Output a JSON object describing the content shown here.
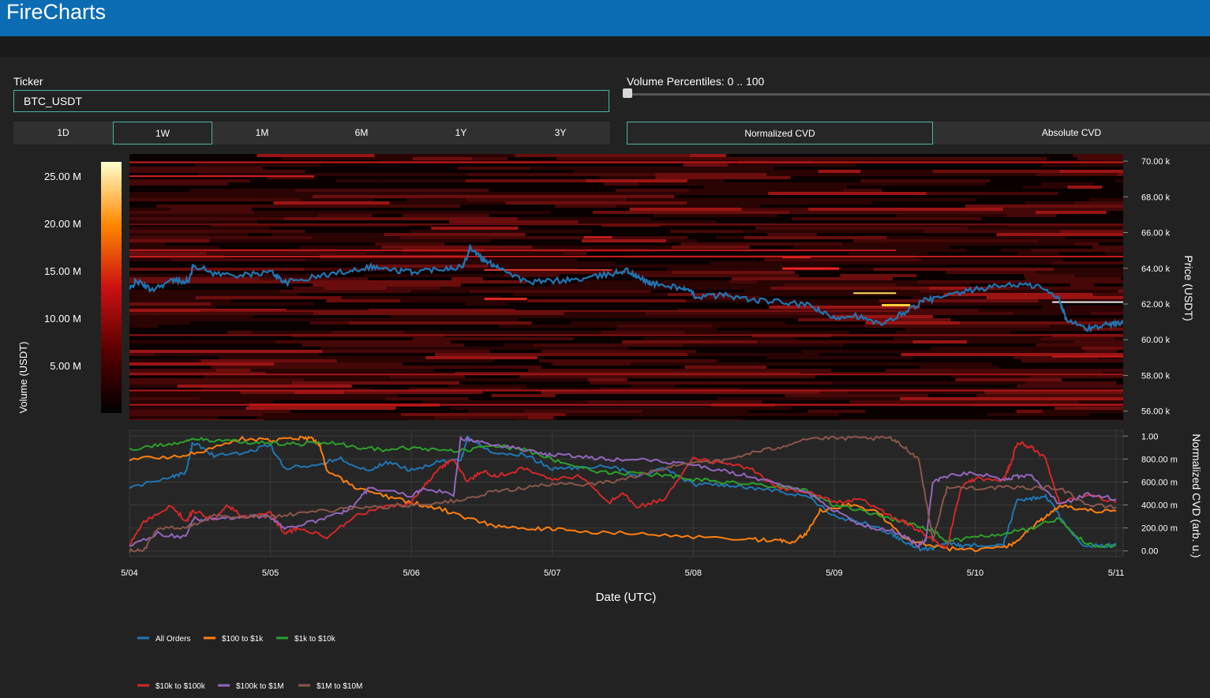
{
  "app": {
    "title": "FireCharts"
  },
  "ticker": {
    "label": "Ticker",
    "value": "BTC_USDT"
  },
  "ranges": [
    {
      "label": "1D",
      "active": false
    },
    {
      "label": "1W",
      "active": true
    },
    {
      "label": "1M",
      "active": false
    },
    {
      "label": "6M",
      "active": false
    },
    {
      "label": "1Y",
      "active": false
    },
    {
      "label": "3Y",
      "active": false
    }
  ],
  "volume_percentiles": {
    "label": "Volume Percentiles: 0 .. 100",
    "min": 0,
    "max": 100,
    "value": 0
  },
  "cvd_modes": [
    {
      "label": "Normalized CVD",
      "active": true
    },
    {
      "label": "Absolute CVD",
      "active": false
    }
  ],
  "colors": {
    "accent": "#0c6cb3",
    "active_border": "#4db3a7",
    "price_line": "#1f77b4",
    "heatmap_low": "#000000",
    "heatmap_mid": "#cc1111",
    "heatmap_high": "#ffffcc"
  },
  "chart_data": [
    {
      "type": "heatmap",
      "colorbar_label": "Volume (USDT)",
      "colorbar_ticks": [
        "25.00 M",
        "20.00 M",
        "15.00 M",
        "10.00 M",
        "5.00 M"
      ],
      "colorbar_range": [
        0,
        26500000
      ],
      "yaxis_label": "Price (USDT)",
      "yaxis_ticks": [
        "70.00 k",
        "68.00 k",
        "66.00 k",
        "64.00 k",
        "62.00 k",
        "60.00 k",
        "58.00 k",
        "56.00 k"
      ],
      "ylim": [
        55500,
        70400
      ],
      "xlim": [
        0,
        7.0
      ],
      "price_series": {
        "name": "Price",
        "x": [
          0,
          0.05,
          0.15,
          0.3,
          0.42,
          0.45,
          0.6,
          0.8,
          1.0,
          1.1,
          1.3,
          1.5,
          1.7,
          1.85,
          2.0,
          2.2,
          2.35,
          2.4,
          2.5,
          2.6,
          2.8,
          3.0,
          3.2,
          3.4,
          3.5,
          3.6,
          3.7,
          3.9,
          4.0,
          4.2,
          4.4,
          4.6,
          4.8,
          4.95,
          5.1,
          5.3,
          5.45,
          5.6,
          5.75,
          5.95,
          6.2,
          6.4,
          6.55,
          6.6,
          6.75,
          6.9,
          7.0
        ],
        "y": [
          62800,
          63300,
          62800,
          63300,
          63300,
          64200,
          63700,
          63600,
          63800,
          63200,
          63500,
          63800,
          64100,
          63900,
          63800,
          64000,
          64100,
          65200,
          64400,
          64100,
          63200,
          63300,
          63400,
          63700,
          63900,
          63400,
          63100,
          62900,
          62400,
          62500,
          62200,
          62100,
          61900,
          61200,
          61400,
          60800,
          61500,
          62200,
          62400,
          62800,
          63100,
          63000,
          62300,
          61100,
          60600,
          60900,
          60900
        ]
      }
    },
    {
      "type": "line",
      "xlabel": "Date (UTC)",
      "ylabel": "Normalized CVD (arb. u.)",
      "x_ticks": [
        "5/04",
        "5/05",
        "5/06",
        "5/07",
        "5/08",
        "5/09",
        "5/10",
        "5/11"
      ],
      "y_ticks": [
        "1.00",
        "800.00 m",
        "600.00 m",
        "400.00 m",
        "200.00 m",
        "0.00"
      ],
      "ylim": [
        -0.05,
        1.05
      ],
      "xlim": [
        0,
        7.05
      ],
      "legend_position": "bottom",
      "series": [
        {
          "name": "All Orders",
          "color": "#1f77b4",
          "x": [
            0,
            0.3,
            0.4,
            0.45,
            0.6,
            0.8,
            1.0,
            1.1,
            1.3,
            1.5,
            1.7,
            1.85,
            2.0,
            2.2,
            2.35,
            2.4,
            2.6,
            2.8,
            3.0,
            3.2,
            3.4,
            3.6,
            3.8,
            4.0,
            4.2,
            4.4,
            4.6,
            4.8,
            5.0,
            5.2,
            5.4,
            5.5,
            5.6,
            5.7,
            5.8,
            5.9,
            6.0,
            6.2,
            6.3,
            6.4,
            6.5,
            6.6,
            6.75,
            6.9,
            7.0
          ],
          "y": [
            0.55,
            0.65,
            0.68,
            0.95,
            0.83,
            0.85,
            0.92,
            0.72,
            0.75,
            0.8,
            0.7,
            0.78,
            0.7,
            0.78,
            0.79,
            0.98,
            0.85,
            0.84,
            0.72,
            0.72,
            0.74,
            0.66,
            0.72,
            0.58,
            0.58,
            0.55,
            0.52,
            0.48,
            0.3,
            0.25,
            0.15,
            0.08,
            0.02,
            0.02,
            0.08,
            0.04,
            0.05,
            0.06,
            0.45,
            0.45,
            0.48,
            0.3,
            0.05,
            0.04,
            0.06
          ]
        },
        {
          "name": "$100 to $1k",
          "color": "#ff7f0e",
          "x": [
            0,
            0.3,
            0.5,
            0.8,
            1.0,
            1.2,
            1.3,
            1.35,
            1.4,
            1.6,
            1.8,
            2.0,
            2.2,
            2.4,
            2.6,
            2.8,
            3.0,
            3.2,
            3.6,
            4.0,
            4.4,
            4.6,
            4.7,
            4.8,
            4.9,
            5.1,
            5.3,
            5.5,
            5.8,
            6.0,
            6.2,
            6.3,
            6.4,
            6.5,
            6.6,
            6.8,
            7.0
          ],
          "y": [
            0.8,
            0.82,
            0.86,
            0.98,
            0.96,
            0.98,
            0.98,
            0.92,
            0.7,
            0.55,
            0.48,
            0.42,
            0.37,
            0.28,
            0.22,
            0.2,
            0.19,
            0.17,
            0.15,
            0.12,
            0.1,
            0.09,
            0.08,
            0.15,
            0.35,
            0.4,
            0.35,
            0.1,
            0.02,
            0.01,
            0.03,
            0.08,
            0.2,
            0.3,
            0.4,
            0.35,
            0.35
          ]
        },
        {
          "name": "$1k to $10k",
          "color": "#2ca02c",
          "x": [
            0,
            0.2,
            0.4,
            0.45,
            0.6,
            0.8,
            1.0,
            1.2,
            1.4,
            1.6,
            1.8,
            2.0,
            2.2,
            2.4,
            2.6,
            2.8,
            3.0,
            3.2,
            3.4,
            3.6,
            3.8,
            4.0,
            4.2,
            4.4,
            4.6,
            4.8,
            5.0,
            5.2,
            5.4,
            5.5,
            5.6,
            5.7,
            5.8,
            6.0,
            6.2,
            6.4,
            6.6,
            6.75,
            6.85,
            7.0
          ],
          "y": [
            0.88,
            0.92,
            0.95,
            0.98,
            0.96,
            0.95,
            0.94,
            0.93,
            0.95,
            0.91,
            0.88,
            0.9,
            0.87,
            0.88,
            0.92,
            0.88,
            0.8,
            0.72,
            0.68,
            0.67,
            0.66,
            0.62,
            0.6,
            0.58,
            0.56,
            0.52,
            0.4,
            0.35,
            0.28,
            0.25,
            0.22,
            0.18,
            0.08,
            0.12,
            0.15,
            0.2,
            0.28,
            0.1,
            0.03,
            0.05
          ]
        },
        {
          "name": "$10k to $100k",
          "color": "#d62728",
          "x": [
            0,
            0.1,
            0.3,
            0.4,
            0.45,
            0.6,
            0.7,
            0.8,
            1.0,
            1.1,
            1.2,
            1.4,
            1.6,
            1.8,
            2.0,
            2.1,
            2.2,
            2.3,
            2.4,
            2.5,
            2.6,
            2.8,
            3.0,
            3.2,
            3.4,
            3.5,
            3.6,
            3.8,
            4.0,
            4.2,
            4.4,
            4.6,
            4.8,
            5.0,
            5.2,
            5.4,
            5.5,
            5.6,
            5.7,
            5.8,
            5.9,
            6.0,
            6.2,
            6.25,
            6.3,
            6.4,
            6.5,
            6.6,
            6.8,
            7.0
          ],
          "y": [
            0.05,
            0.25,
            0.4,
            0.25,
            0.35,
            0.28,
            0.4,
            0.3,
            0.33,
            0.15,
            0.2,
            0.12,
            0.3,
            0.38,
            0.42,
            0.58,
            0.72,
            0.8,
            0.6,
            0.7,
            0.65,
            0.72,
            0.62,
            0.65,
            0.42,
            0.5,
            0.38,
            0.46,
            0.8,
            0.77,
            0.72,
            0.55,
            0.52,
            0.42,
            0.45,
            0.3,
            0.25,
            0.18,
            0.1,
            0.02,
            0.55,
            0.63,
            0.62,
            0.75,
            0.95,
            0.9,
            0.8,
            0.42,
            0.5,
            0.42
          ]
        },
        {
          "name": "$100k to $1M",
          "color": "#9467bd",
          "x": [
            0,
            0.2,
            0.4,
            0.45,
            0.6,
            0.8,
            1.0,
            1.1,
            1.3,
            1.5,
            1.6,
            1.7,
            2.0,
            2.1,
            2.3,
            2.35,
            2.5,
            2.7,
            2.9,
            3.0,
            3.2,
            3.4,
            3.6,
            3.8,
            4.0,
            4.2,
            4.4,
            4.6,
            4.8,
            5.0,
            5.2,
            5.4,
            5.5,
            5.6,
            5.65,
            5.7,
            5.8,
            6.0,
            6.2,
            6.3,
            6.4,
            6.6,
            6.8,
            7.0
          ],
          "y": [
            0.05,
            0.15,
            0.12,
            0.28,
            0.28,
            0.3,
            0.3,
            0.2,
            0.25,
            0.33,
            0.4,
            0.55,
            0.48,
            0.55,
            0.48,
            0.98,
            0.95,
            0.9,
            0.85,
            0.84,
            0.82,
            0.8,
            0.8,
            0.78,
            0.75,
            0.7,
            0.65,
            0.58,
            0.52,
            0.35,
            0.22,
            0.18,
            0.12,
            0.05,
            0.1,
            0.6,
            0.65,
            0.68,
            0.62,
            0.65,
            0.65,
            0.4,
            0.5,
            0.45
          ]
        },
        {
          "name": "$1M to $10M",
          "color": "#8c564b",
          "x": [
            0,
            0.1,
            0.2,
            0.4,
            0.6,
            0.8,
            1.0,
            1.2,
            1.4,
            1.6,
            1.8,
            2.0,
            2.2,
            2.4,
            2.6,
            2.8,
            3.0,
            3.2,
            3.4,
            3.6,
            3.8,
            4.0,
            4.2,
            4.4,
            4.6,
            4.8,
            5.0,
            5.2,
            5.4,
            5.5,
            5.6,
            5.7,
            5.8,
            6.0,
            6.2,
            6.4,
            6.6,
            6.8,
            7.0
          ],
          "y": [
            0.0,
            0.0,
            0.2,
            0.2,
            0.3,
            0.3,
            0.3,
            0.32,
            0.35,
            0.38,
            0.38,
            0.4,
            0.42,
            0.45,
            0.52,
            0.55,
            0.58,
            0.58,
            0.6,
            0.65,
            0.72,
            0.78,
            0.78,
            0.85,
            0.9,
            0.98,
            0.98,
            0.98,
            0.98,
            0.9,
            0.8,
            0.1,
            0.55,
            0.55,
            0.55,
            0.55,
            0.55,
            0.4,
            0.38
          ]
        }
      ]
    }
  ]
}
